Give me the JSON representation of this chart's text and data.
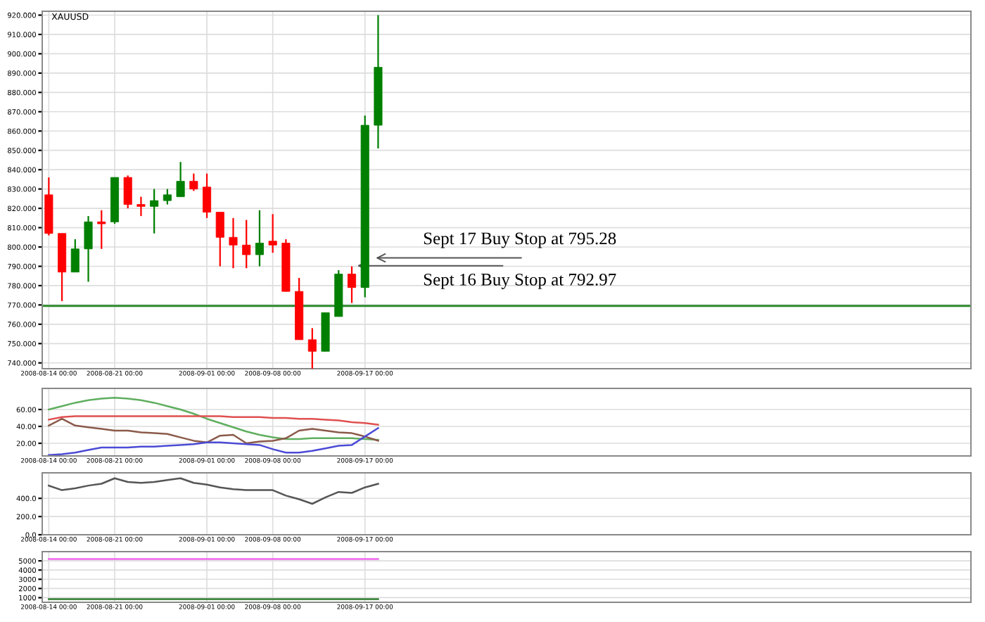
{
  "chart_data": [
    {
      "type": "candlestick",
      "title": "XAUUSD",
      "categories": [
        "2008-08-14 00:00",
        null,
        null,
        null,
        null,
        "2008-08-21 00:00",
        null,
        null,
        null,
        null,
        null,
        null,
        "2008-09-01 00:00",
        null,
        null,
        null,
        null,
        "2008-09-08 00:00",
        null,
        null,
        null,
        null,
        null,
        null,
        "2008-09-17 00:00",
        null
      ],
      "ohlc": [
        [
          827,
          836,
          806,
          807
        ],
        [
          807,
          807,
          772,
          787
        ],
        [
          787,
          804,
          787,
          799
        ],
        [
          799,
          816,
          782,
          813
        ],
        [
          813,
          819,
          799,
          812
        ],
        [
          813,
          836,
          812,
          836
        ],
        [
          836,
          837,
          820,
          822
        ],
        [
          822,
          826,
          816,
          821
        ],
        [
          821,
          830,
          807,
          824
        ],
        [
          824,
          830,
          822,
          827
        ],
        [
          826,
          844,
          826,
          834
        ],
        [
          834,
          838,
          829,
          830
        ],
        [
          831,
          838,
          815,
          818
        ],
        [
          818,
          818,
          790,
          805
        ],
        [
          805,
          815,
          789,
          801
        ],
        [
          801,
          814,
          789,
          796
        ],
        [
          796,
          819,
          790,
          802
        ],
        [
          803,
          817,
          797,
          801
        ],
        [
          802,
          804,
          777,
          777
        ],
        [
          777,
          784,
          752,
          752
        ],
        [
          752,
          758,
          737,
          746
        ],
        [
          746,
          766,
          746,
          766
        ],
        [
          764,
          788,
          764,
          786
        ],
        [
          786,
          790,
          771,
          779
        ],
        [
          779,
          868,
          774,
          863
        ],
        [
          863,
          920,
          851,
          893
        ]
      ],
      "colors": [
        "#ff0000",
        "#ff0000",
        "#007f00",
        "#007f00",
        "#ff0000",
        "#007f00",
        "#ff0000",
        "#ff0000",
        "#007f00",
        "#007f00",
        "#007f00",
        "#ff0000",
        "#ff0000",
        "#ff0000",
        "#ff0000",
        "#ff0000",
        "#007f00",
        "#ff0000",
        "#ff0000",
        "#ff0000",
        "#ff0000",
        "#007f00",
        "#007f00",
        "#ff0000",
        "#007f00",
        "#007f00"
      ],
      "ylim": [
        737,
        922
      ],
      "yticks": [
        {
          "value": 740,
          "label": "740.000"
        },
        {
          "value": 750,
          "label": "750.000"
        },
        {
          "value": 760,
          "label": "760.000"
        },
        {
          "value": 770,
          "label": "770.000"
        },
        {
          "value": 780,
          "label": "780.000"
        },
        {
          "value": 790,
          "label": "790.000"
        },
        {
          "value": 800,
          "label": "800.000"
        },
        {
          "value": 810,
          "label": "810.000"
        },
        {
          "value": 820,
          "label": "820.000"
        },
        {
          "value": 830,
          "label": "830.000"
        },
        {
          "value": 840,
          "label": "840.000"
        },
        {
          "value": 850,
          "label": "850.000"
        },
        {
          "value": 860,
          "label": "860.000"
        },
        {
          "value": 870,
          "label": "870.000"
        },
        {
          "value": 880,
          "label": "880.000"
        },
        {
          "value": 890,
          "label": "890.000"
        },
        {
          "value": 900,
          "label": "900.000"
        },
        {
          "value": 910,
          "label": "910.000"
        },
        {
          "value": 920,
          "label": "920.000"
        }
      ],
      "ref_lines": [
        {
          "axis": "y",
          "value": 769.5,
          "color": "#2e8b2e"
        }
      ],
      "annotations": [
        "Sept 17 Buy Stop at 795.28",
        "Sept 16 Buy Stop at 792.97"
      ],
      "grid": true,
      "legend": false
    },
    {
      "type": "line",
      "categories": [
        "2008-08-14 00:00",
        null,
        null,
        null,
        null,
        "2008-08-21 00:00",
        null,
        null,
        null,
        null,
        null,
        null,
        "2008-09-01 00:00",
        null,
        null,
        null,
        null,
        "2008-09-08 00:00",
        null,
        null,
        null,
        null,
        null,
        null,
        "2008-09-17 00:00",
        null
      ],
      "series": [
        {
          "color": "#5fae5f",
          "values": [
            60,
            64,
            68,
            71,
            73,
            74,
            73,
            71,
            68,
            64,
            60,
            55,
            49,
            44,
            39,
            34,
            30,
            27,
            25,
            25,
            26,
            26,
            26,
            26,
            25,
            24
          ]
        },
        {
          "color": "#e05050",
          "values": [
            48,
            51,
            52,
            52,
            52,
            52,
            52,
            52,
            52,
            52,
            52,
            52,
            52,
            52,
            51,
            51,
            51,
            50,
            50,
            49,
            49,
            48,
            47,
            45,
            44,
            42
          ]
        },
        {
          "color": "#8b5a4a",
          "values": [
            41,
            49,
            41,
            39,
            37,
            35,
            35,
            33,
            32,
            31,
            27,
            23,
            21,
            29,
            30,
            20,
            22,
            23,
            26,
            35,
            37,
            35,
            33,
            32,
            28,
            23
          ]
        },
        {
          "color": "#4b4bd6",
          "values": [
            6,
            7,
            9,
            12,
            15,
            15,
            15,
            16,
            16,
            17,
            18,
            19,
            21,
            21,
            20,
            19,
            18,
            13,
            9,
            9,
            11,
            14,
            17,
            18,
            28,
            38
          ]
        }
      ],
      "ylim": [
        5,
        85
      ],
      "yticks": [
        {
          "value": 20,
          "label": "20.00"
        },
        {
          "value": 40,
          "label": "40.00"
        },
        {
          "value": 60,
          "label": "60.00"
        }
      ],
      "grid": true,
      "legend": false
    },
    {
      "type": "line",
      "categories": [
        "2008-08-14 00:00",
        null,
        null,
        null,
        null,
        "2008-08-21 00:00",
        null,
        null,
        null,
        null,
        null,
        null,
        "2008-09-01 00:00",
        null,
        null,
        null,
        null,
        "2008-09-08 00:00",
        null,
        null,
        null,
        null,
        null,
        null,
        "2008-09-17 00:00",
        null
      ],
      "series": [
        {
          "color": "#555555",
          "values": [
            540,
            490,
            510,
            540,
            560,
            620,
            580,
            570,
            580,
            600,
            620,
            570,
            550,
            520,
            500,
            490,
            490,
            490,
            430,
            390,
            340,
            410,
            470,
            460,
            520,
            560
          ]
        }
      ],
      "ylim": [
        0,
        680
      ],
      "yticks": [
        {
          "value": 0,
          "label": "0.0"
        },
        {
          "value": 200,
          "label": "200.0"
        },
        {
          "value": 400,
          "label": "400.0"
        }
      ],
      "grid": true,
      "legend": false
    },
    {
      "type": "line",
      "categories": [
        "2008-08-14 00:00",
        null,
        null,
        null,
        null,
        "2008-08-21 00:00",
        null,
        null,
        null,
        null,
        null,
        null,
        "2008-09-01 00:00",
        null,
        null,
        null,
        null,
        "2008-09-08 00:00",
        null,
        null,
        null,
        null,
        null,
        null,
        "2008-09-17 00:00",
        null
      ],
      "series": [
        {
          "color": "#ee66ee",
          "values": [
            5200,
            5200,
            5200,
            5200,
            5200,
            5200,
            5200,
            5200,
            5200,
            5200,
            5200,
            5200,
            5200,
            5200,
            5200,
            5200,
            5200,
            5200,
            5200,
            5200,
            5200,
            5200,
            5200,
            5200,
            5200,
            5200
          ]
        },
        {
          "color": "#2e7d2e",
          "values": [
            850,
            850,
            850,
            850,
            850,
            850,
            850,
            850,
            850,
            850,
            850,
            850,
            850,
            850,
            850,
            850,
            850,
            850,
            850,
            850,
            850,
            850,
            850,
            850,
            850,
            850
          ]
        }
      ],
      "ylim": [
        500,
        6000
      ],
      "yticks": [
        {
          "value": 1000,
          "label": "1000"
        },
        {
          "value": 2000,
          "label": "2000"
        },
        {
          "value": 3000,
          "label": "3000"
        },
        {
          "value": 4000,
          "label": "4000"
        },
        {
          "value": 5000,
          "label": "5000"
        }
      ],
      "grid": true,
      "legend": false
    }
  ]
}
